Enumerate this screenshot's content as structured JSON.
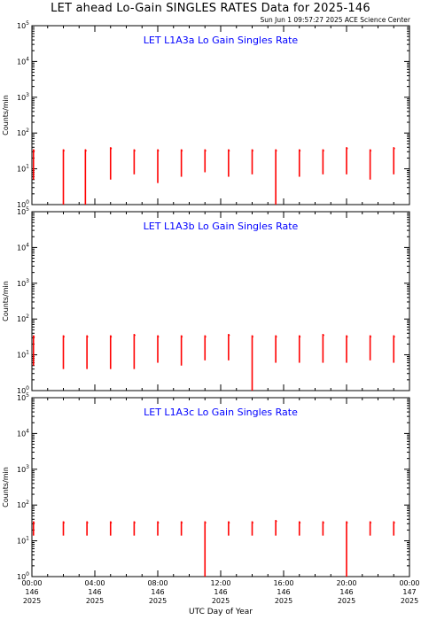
{
  "title": "LET ahead Lo-Gain SINGLES RATES Data for 2025-146",
  "timestamp": "Sun Jun  1 09:57:27 2025 ACE Science Center",
  "colors": {
    "data": "#ff0000",
    "panel_title": "#0000ff",
    "axes": "#000000"
  },
  "chart_data": [
    {
      "type": "line",
      "title": "LET L1A3a Lo Gain Singles Rate",
      "ylabel": "Counts/min",
      "yscale": "log",
      "ylim": [
        1,
        100000
      ],
      "ytick_labels": [
        "10^0",
        "10^1",
        "10^2",
        "10^3",
        "10^4",
        "10^5"
      ],
      "xlim": [
        0,
        24
      ],
      "grid": false,
      "bursts": [
        {
          "x": 0.1,
          "top": 35,
          "bottom": 5
        },
        {
          "x": 2.0,
          "top": 35,
          "bottom": 1
        },
        {
          "x": 3.4,
          "top": 35,
          "bottom": 1
        },
        {
          "x": 5.0,
          "top": 40,
          "bottom": 5
        },
        {
          "x": 6.5,
          "top": 35,
          "bottom": 7
        },
        {
          "x": 8.0,
          "top": 35,
          "bottom": 4
        },
        {
          "x": 9.5,
          "top": 35,
          "bottom": 6
        },
        {
          "x": 11.0,
          "top": 35,
          "bottom": 8
        },
        {
          "x": 12.5,
          "top": 35,
          "bottom": 6
        },
        {
          "x": 14.0,
          "top": 35,
          "bottom": 7
        },
        {
          "x": 15.5,
          "top": 35,
          "bottom": 1
        },
        {
          "x": 17.0,
          "top": 35,
          "bottom": 6
        },
        {
          "x": 18.5,
          "top": 35,
          "bottom": 7
        },
        {
          "x": 20.0,
          "top": 40,
          "bottom": 7
        },
        {
          "x": 21.5,
          "top": 35,
          "bottom": 5
        },
        {
          "x": 23.0,
          "top": 40,
          "bottom": 7
        }
      ]
    },
    {
      "type": "line",
      "title": "LET L1A3b Lo Gain Singles Rate",
      "ylabel": "Counts/min",
      "yscale": "log",
      "ylim": [
        1,
        100000
      ],
      "ytick_labels": [
        "10^0",
        "10^1",
        "10^2",
        "10^3",
        "10^4",
        "10^5"
      ],
      "xlim": [
        0,
        24
      ],
      "grid": false,
      "bursts": [
        {
          "x": 0.1,
          "top": 35,
          "bottom": 5
        },
        {
          "x": 2.0,
          "top": 35,
          "bottom": 4
        },
        {
          "x": 3.5,
          "top": 35,
          "bottom": 4
        },
        {
          "x": 5.0,
          "top": 35,
          "bottom": 4
        },
        {
          "x": 6.5,
          "top": 38,
          "bottom": 4
        },
        {
          "x": 8.0,
          "top": 35,
          "bottom": 6
        },
        {
          "x": 9.5,
          "top": 35,
          "bottom": 5
        },
        {
          "x": 11.0,
          "top": 35,
          "bottom": 7
        },
        {
          "x": 12.5,
          "top": 38,
          "bottom": 7
        },
        {
          "x": 14.0,
          "top": 35,
          "bottom": 1
        },
        {
          "x": 15.5,
          "top": 35,
          "bottom": 6
        },
        {
          "x": 17.0,
          "top": 35,
          "bottom": 6
        },
        {
          "x": 18.5,
          "top": 38,
          "bottom": 6
        },
        {
          "x": 20.0,
          "top": 35,
          "bottom": 6
        },
        {
          "x": 21.5,
          "top": 35,
          "bottom": 7
        },
        {
          "x": 23.0,
          "top": 35,
          "bottom": 6
        }
      ]
    },
    {
      "type": "line",
      "title": "LET L1A3c Lo Gain Singles Rate",
      "ylabel": "Counts/min",
      "yscale": "log",
      "ylim": [
        1,
        100000
      ],
      "ytick_labels": [
        "10^0",
        "10^1",
        "10^2",
        "10^3",
        "10^4",
        "10^5"
      ],
      "xlim": [
        0,
        24
      ],
      "grid": false,
      "xlabel": "UTC Day of Year",
      "xtick_labels": [
        [
          "00:00",
          "146",
          "2025"
        ],
        [
          "04:00",
          "146",
          "2025"
        ],
        [
          "08:00",
          "146",
          "2025"
        ],
        [
          "12:00",
          "146",
          "2025"
        ],
        [
          "16:00",
          "146",
          "2025"
        ],
        [
          "20:00",
          "146",
          "2025"
        ],
        [
          "00:00",
          "147",
          "2025"
        ]
      ],
      "xtick_values": [
        0,
        4,
        8,
        12,
        16,
        20,
        24
      ],
      "bursts": [
        {
          "x": 0.1,
          "top": 35,
          "bottom": 14
        },
        {
          "x": 2.0,
          "top": 35,
          "bottom": 14
        },
        {
          "x": 3.5,
          "top": 35,
          "bottom": 14
        },
        {
          "x": 5.0,
          "top": 35,
          "bottom": 14
        },
        {
          "x": 6.5,
          "top": 35,
          "bottom": 14
        },
        {
          "x": 8.0,
          "top": 35,
          "bottom": 14
        },
        {
          "x": 9.5,
          "top": 35,
          "bottom": 14
        },
        {
          "x": 11.0,
          "top": 35,
          "bottom": 1
        },
        {
          "x": 12.5,
          "top": 35,
          "bottom": 14
        },
        {
          "x": 14.0,
          "top": 35,
          "bottom": 14
        },
        {
          "x": 15.5,
          "top": 38,
          "bottom": 14
        },
        {
          "x": 17.0,
          "top": 35,
          "bottom": 14
        },
        {
          "x": 18.5,
          "top": 35,
          "bottom": 14
        },
        {
          "x": 20.0,
          "top": 35,
          "bottom": 1
        },
        {
          "x": 21.5,
          "top": 35,
          "bottom": 14
        },
        {
          "x": 23.0,
          "top": 35,
          "bottom": 14
        }
      ]
    }
  ]
}
